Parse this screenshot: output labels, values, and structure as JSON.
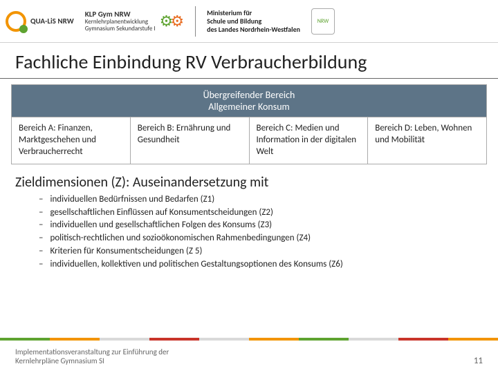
{
  "header": {
    "qualis": "QUA-LiS NRW",
    "klp_line1": "KLP Gym NRW",
    "klp_line2": "Kernlehrplanentwicklung",
    "klp_line3": "Gymnasium Sekundarstufe I",
    "ministry_line1": "Ministerium für",
    "ministry_line2": "Schule und Bildung",
    "ministry_line3": "des Landes Nordrhein-Westfalen",
    "nrw": "NRW"
  },
  "title": "Fachliche Einbindung RV Verbraucherbildung",
  "table": {
    "header_line1": "Übergreifender Bereich",
    "header_line2": "Allgemeiner Konsum",
    "cols": [
      "Bereich A: Finanzen, Marktgeschehen und Verbraucherrecht",
      "Bereich B: Ernährung und Gesundheit",
      "Bereich C: Medien und Information in der digitalen Welt",
      "Bereich D: Leben, Wohnen und Mobilität"
    ]
  },
  "subheading": "Zieldimensionen (Z): Auseinandersetzung mit",
  "list_items": [
    "individuellen Bedürfnissen und Bedarfen (Z1)",
    "gesellschaftlichen Einflüssen auf Konsumentscheidungen (Z2)",
    "individuellen und gesellschaftlichen Folgen des Konsums (Z3)",
    "politisch-rechtlichen und sozioökonomischen Rahmenbedingungen (Z4)",
    "Kriterien für Konsumentscheidungen (Z 5)",
    "individuellen, kollektiven und politischen Gestaltungsoptionen des Konsums (Z6)"
  ],
  "stripe_colors": [
    "#5ea330",
    "#f29400",
    "#d9d9d9",
    "#c9342a",
    "#d9d9d9",
    "#f29400",
    "#5ea330",
    "#d9d9d9",
    "#c9342a",
    "#f29400"
  ],
  "footer_text": "Implementationsveranstaltung zur Einführung der Kernlehrpläne Gymnasium SI",
  "page_number": "11",
  "colors": {
    "over_header_bg": "#5d7487",
    "border": "#aaaaaa",
    "text": "#222222",
    "footer_text": "#666666"
  }
}
